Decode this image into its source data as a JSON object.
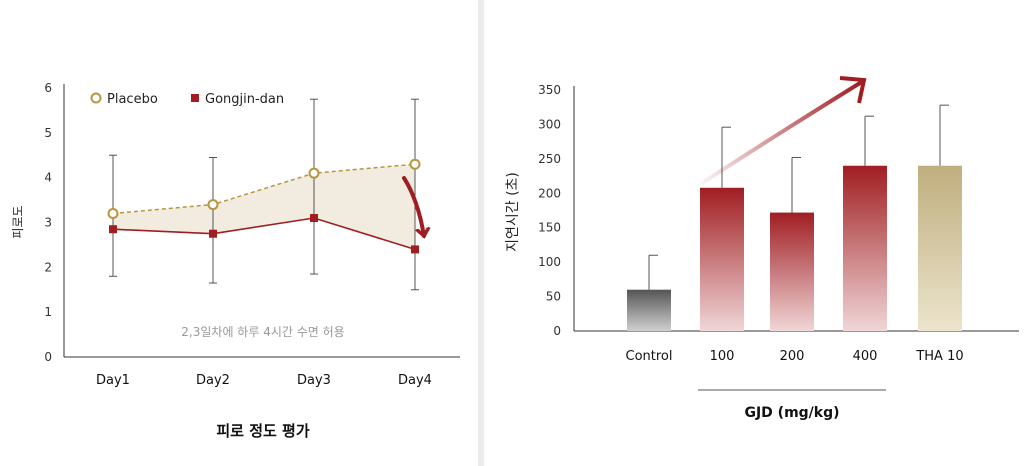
{
  "chart_data": [
    {
      "type": "line",
      "title": "피로 정도 평가",
      "ylabel": "피로도",
      "xlabel": "",
      "categories": [
        "Day1",
        "Day2",
        "Day3",
        "Day4"
      ],
      "ylim": [
        0,
        6
      ],
      "yticks": [
        0,
        1,
        2,
        3,
        4,
        5,
        6
      ],
      "annotation": "2,3일차에 하루 4시간 수면 허용",
      "legend_position": "top-left",
      "series": [
        {
          "name": "Placebo",
          "values": [
            3.2,
            3.4,
            4.1,
            4.3
          ],
          "error_upper": [
            4.5,
            4.45,
            5.75,
            5.75
          ],
          "error_lower": [
            1.8,
            1.65,
            1.85,
            1.5
          ],
          "color": "#b8963e",
          "style": "dashed-open-circle"
        },
        {
          "name": "Gongjin-dan",
          "values": [
            2.85,
            2.75,
            3.1,
            2.4
          ],
          "color": "#a01e22",
          "style": "solid-square"
        }
      ]
    },
    {
      "type": "bar",
      "title": "",
      "ylabel": "지연시간 (초)",
      "xlabel": "GJD (mg/kg)",
      "categories": [
        "Control",
        "100",
        "200",
        "400",
        "THA 10"
      ],
      "values": [
        60,
        208,
        172,
        240,
        240
      ],
      "error_upper": [
        110,
        296,
        252,
        312,
        328
      ],
      "ylim": [
        0,
        350
      ],
      "yticks": [
        0,
        50,
        100,
        150,
        200,
        250,
        300,
        350
      ],
      "colors": {
        "control": "#6a6a6a",
        "gjd": "#a01e22",
        "tha": "#c9b98a"
      }
    }
  ]
}
